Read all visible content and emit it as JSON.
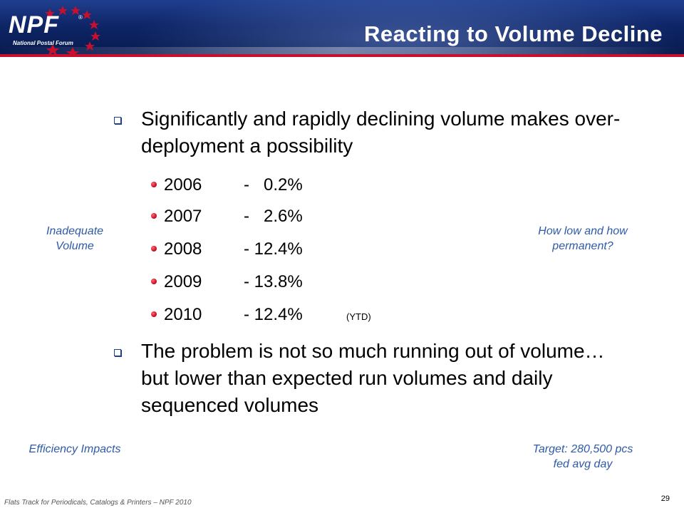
{
  "header": {
    "logo_text": "NPF",
    "logo_reg": "®",
    "logo_subtitle": "National Postal Forum",
    "title": "Reacting to Volume Decline"
  },
  "bullets": [
    {
      "text": "Significantly and rapidly declining volume makes over-deployment a possibility"
    },
    {
      "text": "The problem is not so much running out of volume…but lower than expected run volumes and daily sequenced volumes"
    }
  ],
  "decline_items": [
    {
      "year": "2006",
      "value": "-   0.2%",
      "note": ""
    },
    {
      "year": "2007",
      "value": "-   2.6%",
      "note": ""
    },
    {
      "year": "2008",
      "value": "- 12.4%",
      "note": ""
    },
    {
      "year": "2009",
      "value": "- 13.8%",
      "note": ""
    },
    {
      "year": "2010",
      "value": "- 12.4%",
      "note": "(YTD)"
    }
  ],
  "side_notes": {
    "inadequate_volume": "Inadequate Volume",
    "how_low": "How low and how permanent?",
    "efficiency": "Efficiency Impacts",
    "target": "Target: 280,500 pcs fed avg day"
  },
  "footer": {
    "text": "Flats Track for Periodicals, Catalogs & Printers – NPF 2010",
    "page_number": "29"
  },
  "colors": {
    "header_blue": "#0e2566",
    "accent_red": "#c8102e",
    "side_note_blue": "#2e5aa8"
  }
}
